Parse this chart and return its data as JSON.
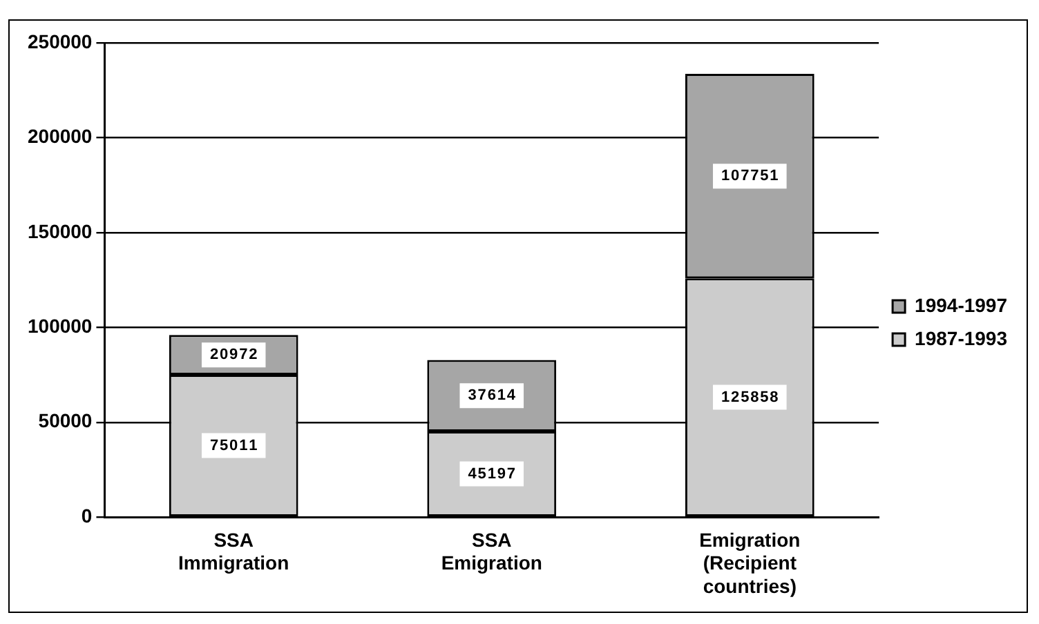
{
  "chart_data": {
    "type": "bar",
    "stacked": true,
    "categories": [
      "SSA Immigration",
      "SSA Emigration",
      "Emigration (Recipient countries)"
    ],
    "series": [
      {
        "name": "1987-1993",
        "color": "#cccccc",
        "values": [
          75011,
          45197,
          125858
        ]
      },
      {
        "name": "1994-1997",
        "color": "#a6a6a6",
        "values": [
          20972,
          37614,
          107751
        ]
      }
    ],
    "ylim": [
      0,
      250000
    ],
    "yticks": [
      0,
      50000,
      100000,
      150000,
      200000,
      250000
    ],
    "grid": "y",
    "legend": "right",
    "data_labels": true
  }
}
